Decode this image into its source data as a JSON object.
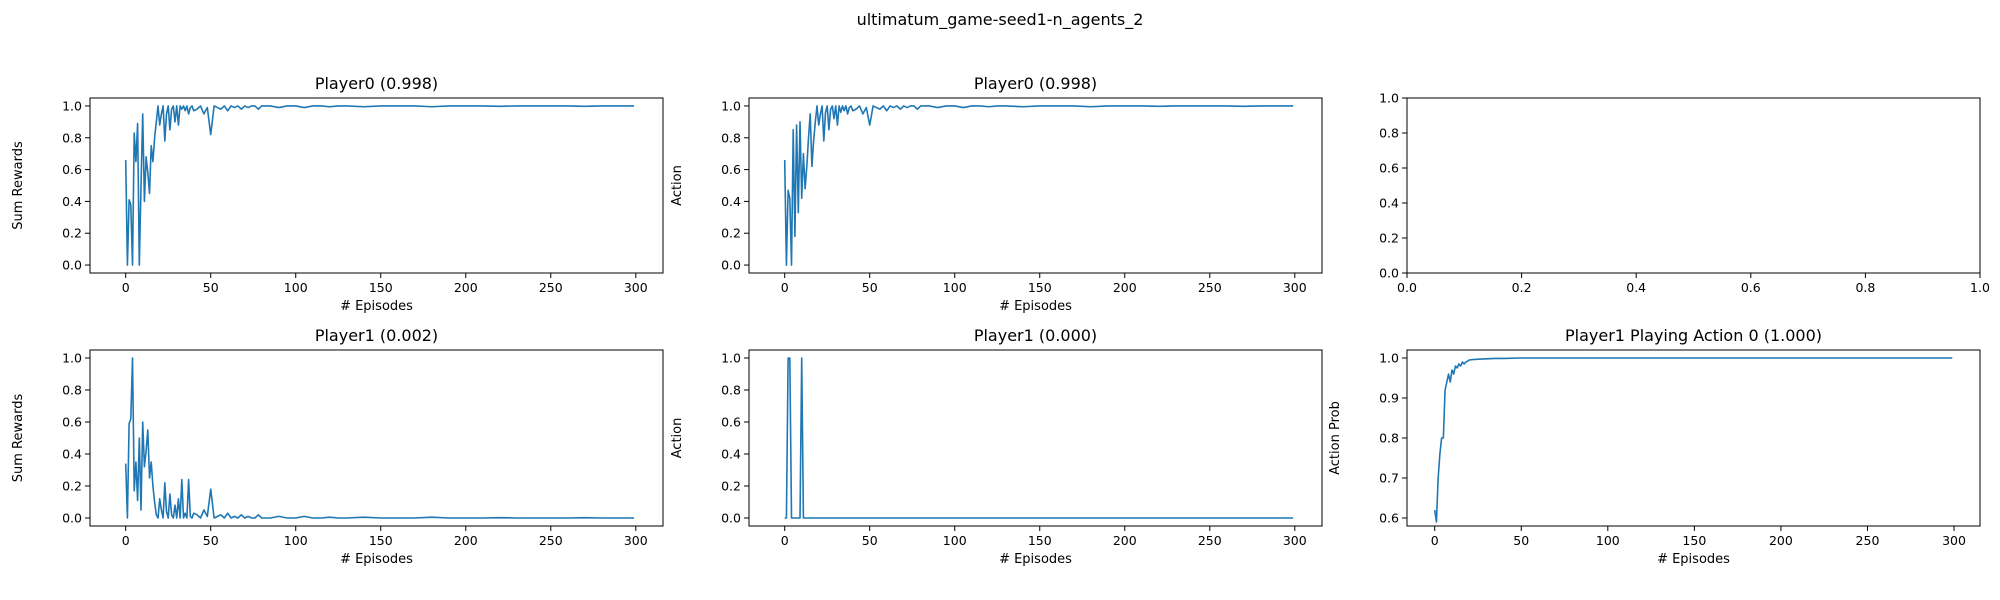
{
  "figure_title": "ultimatum_game-seed1-n_agents_2",
  "chart_data": [
    {
      "type": "line",
      "title": "Player0 (0.998)",
      "xlabel": "# Episodes",
      "ylabel": "Sum Rewards",
      "xlim": [
        -21,
        316
      ],
      "ylim": [
        -0.05,
        1.05
      ],
      "xticks": [
        0,
        50,
        100,
        150,
        200,
        250,
        300
      ],
      "xtick_labels": [
        "0",
        "50",
        "100",
        "150",
        "200",
        "250",
        "300"
      ],
      "yticks": [
        0.0,
        0.2,
        0.4,
        0.6,
        0.8,
        1.0
      ],
      "ytick_labels": [
        "0.0",
        "0.2",
        "0.4",
        "0.6",
        "0.8",
        "1.0"
      ],
      "series": [
        {
          "name": "Player0 sum rewards",
          "x": [
            0,
            1,
            2,
            3,
            4,
            5,
            6,
            7,
            8,
            9,
            10,
            11,
            12,
            13,
            14,
            15,
            16,
            17,
            18,
            19,
            20,
            21,
            22,
            23,
            24,
            25,
            26,
            27,
            28,
            29,
            30,
            31,
            32,
            33,
            34,
            35,
            36,
            37,
            38,
            39,
            40,
            42,
            44,
            46,
            48,
            50,
            52,
            54,
            56,
            58,
            60,
            62,
            64,
            66,
            68,
            70,
            72,
            74,
            76,
            78,
            80,
            85,
            90,
            95,
            100,
            105,
            110,
            115,
            120,
            125,
            130,
            140,
            150,
            160,
            170,
            180,
            190,
            200,
            210,
            220,
            230,
            240,
            250,
            260,
            270,
            280,
            290,
            299
          ],
          "values": [
            0.66,
            0.0,
            0.41,
            0.38,
            0.0,
            0.83,
            0.65,
            0.89,
            0.0,
            0.5,
            0.95,
            0.4,
            0.68,
            0.58,
            0.45,
            0.75,
            0.65,
            0.8,
            0.9,
            1.0,
            0.88,
            0.95,
            1.0,
            0.78,
            0.95,
            1.0,
            0.85,
            0.98,
            1.0,
            0.9,
            1.0,
            0.88,
            1.0,
            0.98,
            1.0,
            0.97,
            1.0,
            0.95,
            0.99,
            1.0,
            0.97,
            0.98,
            1.0,
            0.95,
            0.99,
            0.82,
            1.0,
            0.99,
            0.98,
            1.0,
            0.97,
            1.0,
            0.99,
            1.0,
            0.98,
            1.0,
            0.99,
            1.0,
            1.0,
            0.98,
            1.0,
            1.0,
            0.99,
            1.0,
            1.0,
            0.99,
            1.0,
            1.0,
            0.995,
            1.0,
            1.0,
            0.995,
            1.0,
            1.0,
            1.0,
            0.995,
            1.0,
            1.0,
            1.0,
            0.998,
            1.0,
            1.0,
            1.0,
            1.0,
            0.998,
            1.0,
            1.0,
            1.0
          ]
        }
      ]
    },
    {
      "type": "line",
      "title": "Player0 (0.998)",
      "xlabel": "# Episodes",
      "ylabel": "Action",
      "xlim": [
        -21,
        316
      ],
      "ylim": [
        -0.05,
        1.05
      ],
      "xticks": [
        0,
        50,
        100,
        150,
        200,
        250,
        300
      ],
      "xtick_labels": [
        "0",
        "50",
        "100",
        "150",
        "200",
        "250",
        "300"
      ],
      "yticks": [
        0.0,
        0.2,
        0.4,
        0.6,
        0.8,
        1.0
      ],
      "ytick_labels": [
        "0.0",
        "0.2",
        "0.4",
        "0.6",
        "0.8",
        "1.0"
      ],
      "series": [
        {
          "name": "Player0 action",
          "x": [
            0,
            1,
            2,
            3,
            4,
            5,
            6,
            7,
            8,
            9,
            10,
            11,
            12,
            13,
            14,
            15,
            16,
            17,
            18,
            19,
            20,
            21,
            22,
            23,
            24,
            25,
            26,
            27,
            28,
            29,
            30,
            31,
            32,
            33,
            34,
            35,
            36,
            37,
            38,
            39,
            40,
            42,
            44,
            46,
            48,
            50,
            52,
            54,
            56,
            58,
            60,
            62,
            64,
            66,
            68,
            70,
            72,
            74,
            76,
            78,
            80,
            85,
            90,
            95,
            100,
            105,
            110,
            115,
            120,
            125,
            130,
            140,
            150,
            160,
            170,
            180,
            190,
            200,
            210,
            220,
            230,
            240,
            250,
            260,
            270,
            280,
            290,
            299
          ],
          "values": [
            0.66,
            0.0,
            0.47,
            0.42,
            0.0,
            0.85,
            0.18,
            0.88,
            0.33,
            0.9,
            0.42,
            0.7,
            0.48,
            0.62,
            0.8,
            0.95,
            0.62,
            0.78,
            0.9,
            1.0,
            0.88,
            0.95,
            1.0,
            0.78,
            0.96,
            1.0,
            0.85,
            0.98,
            1.0,
            0.92,
            1.0,
            0.88,
            1.0,
            0.96,
            1.0,
            0.97,
            1.0,
            0.95,
            0.99,
            1.0,
            0.97,
            0.98,
            1.0,
            0.95,
            0.99,
            0.88,
            1.0,
            0.99,
            0.98,
            1.0,
            0.97,
            1.0,
            0.99,
            1.0,
            0.98,
            1.0,
            0.99,
            1.0,
            1.0,
            0.98,
            1.0,
            1.0,
            0.99,
            1.0,
            1.0,
            0.99,
            1.0,
            1.0,
            0.995,
            1.0,
            1.0,
            0.995,
            1.0,
            1.0,
            1.0,
            0.995,
            1.0,
            1.0,
            1.0,
            0.998,
            1.0,
            1.0,
            1.0,
            1.0,
            0.998,
            1.0,
            1.0,
            1.0
          ]
        }
      ]
    },
    {
      "type": "line",
      "title": "",
      "xlabel": "",
      "ylabel": "",
      "xlim": [
        0.0,
        1.0
      ],
      "ylim": [
        0.0,
        1.0
      ],
      "xticks": [
        0.0,
        0.2,
        0.4,
        0.6,
        0.8,
        1.0
      ],
      "xtick_labels": [
        "0.0",
        "0.2",
        "0.4",
        "0.6",
        "0.8",
        "1.0"
      ],
      "yticks": [
        0.0,
        0.2,
        0.4,
        0.6,
        0.8,
        1.0
      ],
      "ytick_labels": [
        "0.0",
        "0.2",
        "0.4",
        "0.6",
        "0.8",
        "1.0"
      ],
      "series": []
    },
    {
      "type": "line",
      "title": "Player1 (0.002)",
      "xlabel": "# Episodes",
      "ylabel": "Sum Rewards",
      "xlim": [
        -21,
        316
      ],
      "ylim": [
        -0.05,
        1.05
      ],
      "xticks": [
        0,
        50,
        100,
        150,
        200,
        250,
        300
      ],
      "xtick_labels": [
        "0",
        "50",
        "100",
        "150",
        "200",
        "250",
        "300"
      ],
      "yticks": [
        0.0,
        0.2,
        0.4,
        0.6,
        0.8,
        1.0
      ],
      "ytick_labels": [
        "0.0",
        "0.2",
        "0.4",
        "0.6",
        "0.8",
        "1.0"
      ],
      "series": [
        {
          "name": "Player1 sum rewards",
          "x": [
            0,
            1,
            2,
            3,
            4,
            5,
            6,
            7,
            8,
            9,
            10,
            11,
            12,
            13,
            14,
            15,
            16,
            17,
            18,
            19,
            20,
            21,
            22,
            23,
            24,
            25,
            26,
            27,
            28,
            29,
            30,
            31,
            32,
            33,
            34,
            35,
            36,
            37,
            38,
            39,
            40,
            42,
            44,
            46,
            48,
            50,
            52,
            54,
            56,
            58,
            60,
            62,
            64,
            66,
            68,
            70,
            72,
            74,
            76,
            78,
            80,
            85,
            90,
            95,
            100,
            105,
            110,
            115,
            120,
            125,
            130,
            140,
            150,
            160,
            170,
            180,
            190,
            200,
            210,
            220,
            230,
            240,
            250,
            260,
            270,
            280,
            290,
            299
          ],
          "values": [
            0.34,
            0.0,
            0.59,
            0.62,
            1.0,
            0.17,
            0.35,
            0.11,
            0.5,
            0.05,
            0.6,
            0.32,
            0.42,
            0.55,
            0.25,
            0.35,
            0.2,
            0.1,
            0.02,
            0.0,
            0.12,
            0.05,
            0.0,
            0.22,
            0.04,
            0.0,
            0.15,
            0.02,
            0.0,
            0.08,
            0.0,
            0.12,
            0.0,
            0.24,
            0.0,
            0.03,
            0.0,
            0.24,
            0.01,
            0.0,
            0.03,
            0.02,
            0.0,
            0.05,
            0.01,
            0.18,
            0.0,
            0.01,
            0.02,
            0.0,
            0.03,
            0.0,
            0.01,
            0.0,
            0.02,
            0.0,
            0.01,
            0.0,
            0.0,
            0.02,
            0.0,
            0.0,
            0.01,
            0.0,
            0.0,
            0.01,
            0.0,
            0.0,
            0.005,
            0.0,
            0.0,
            0.005,
            0.0,
            0.0,
            0.0,
            0.005,
            0.0,
            0.0,
            0.0,
            0.002,
            0.0,
            0.0,
            0.0,
            0.0,
            0.002,
            0.0,
            0.0,
            0.0
          ]
        }
      ]
    },
    {
      "type": "line",
      "title": "Player1 (0.000)",
      "xlabel": "# Episodes",
      "ylabel": "Action",
      "xlim": [
        -21,
        316
      ],
      "ylim": [
        -0.05,
        1.05
      ],
      "xticks": [
        0,
        50,
        100,
        150,
        200,
        250,
        300
      ],
      "xtick_labels": [
        "0",
        "50",
        "100",
        "150",
        "200",
        "250",
        "300"
      ],
      "yticks": [
        0.0,
        0.2,
        0.4,
        0.6,
        0.8,
        1.0
      ],
      "ytick_labels": [
        "0.0",
        "0.2",
        "0.4",
        "0.6",
        "0.8",
        "1.0"
      ],
      "series": [
        {
          "name": "Player1 action",
          "x": [
            0,
            1,
            2,
            3,
            4,
            5,
            6,
            7,
            8,
            9,
            10,
            11,
            12,
            20,
            50,
            100,
            150,
            200,
            250,
            299
          ],
          "values": [
            0,
            0,
            1,
            1,
            0,
            0,
            0,
            0,
            0,
            0,
            1,
            0,
            0,
            0,
            0,
            0,
            0,
            0,
            0,
            0
          ]
        }
      ]
    },
    {
      "type": "line",
      "title": "Player1 Playing Action 0 (1.000)",
      "xlabel": "# Episodes",
      "ylabel": "Action Prob",
      "xlim": [
        -16,
        315
      ],
      "ylim": [
        0.58,
        1.02
      ],
      "xticks": [
        0,
        50,
        100,
        150,
        200,
        250,
        300
      ],
      "xtick_labels": [
        "0",
        "50",
        "100",
        "150",
        "200",
        "250",
        "300"
      ],
      "yticks": [
        0.6,
        0.7,
        0.8,
        0.9,
        1.0
      ],
      "ytick_labels": [
        "0.6",
        "0.7",
        "0.8",
        "0.9",
        "1.0"
      ],
      "series": [
        {
          "name": "Player1 action 0 probability",
          "x": [
            0,
            1,
            2,
            3,
            4,
            5,
            6,
            7,
            8,
            9,
            10,
            11,
            12,
            13,
            14,
            15,
            16,
            17,
            18,
            19,
            20,
            22,
            25,
            30,
            35,
            40,
            50,
            60,
            80,
            100,
            150,
            200,
            250,
            299
          ],
          "values": [
            0.62,
            0.59,
            0.7,
            0.76,
            0.8,
            0.8,
            0.92,
            0.94,
            0.96,
            0.94,
            0.97,
            0.96,
            0.98,
            0.975,
            0.985,
            0.98,
            0.99,
            0.985,
            0.99,
            0.992,
            0.995,
            0.996,
            0.997,
            0.998,
            0.999,
            0.999,
            1.0,
            1.0,
            1.0,
            1.0,
            1.0,
            1.0,
            1.0,
            1.0
          ]
        }
      ]
    }
  ]
}
